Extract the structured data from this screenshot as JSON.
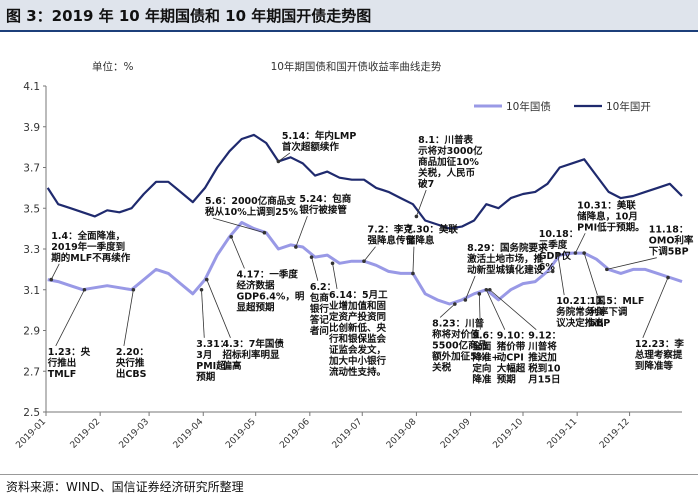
{
  "header": {
    "title": "图 3：2019 年 10 年期国债和 10 年期国开债走势图"
  },
  "footer": {
    "source": "资料来源：WIND、国信证券经济研究所整理"
  },
  "colors": {
    "cgb": "#9999e6",
    "cdb": "#1f2a6e"
  },
  "chart_data": {
    "type": "line",
    "title": "10年期国债和国开债收益率曲线走势",
    "unit_label": "单位：%",
    "ylim": [
      2.5,
      4.1
    ],
    "yticks": [
      "2.5",
      "2.7",
      "2.9",
      "3.1",
      "3.3",
      "3.5",
      "3.7",
      "3.9",
      "4.1"
    ],
    "x_range": [
      "2019-01-01",
      "2019-12-31"
    ],
    "xticks": [
      "2019-01",
      "2019-02",
      "2019-03",
      "2019-04",
      "2019-05",
      "2019-06",
      "2019-07",
      "2019-08",
      "2019-09",
      "2019-10",
      "2019-11",
      "2019-12"
    ],
    "grid": false,
    "legend_position": "top-right",
    "series": [
      {
        "name": "10年国债",
        "color": "#9999e6",
        "points": [
          [
            "2019-01-02",
            3.15
          ],
          [
            "2019-01-08",
            3.14
          ],
          [
            "2019-01-15",
            3.12
          ],
          [
            "2019-01-22",
            3.1
          ],
          [
            "2019-01-29",
            3.11
          ],
          [
            "2019-02-05",
            3.12
          ],
          [
            "2019-02-12",
            3.11
          ],
          [
            "2019-02-19",
            3.1
          ],
          [
            "2019-02-26",
            3.15
          ],
          [
            "2019-03-05",
            3.2
          ],
          [
            "2019-03-12",
            3.18
          ],
          [
            "2019-03-19",
            3.13
          ],
          [
            "2019-03-26",
            3.08
          ],
          [
            "2019-04-02",
            3.15
          ],
          [
            "2019-04-09",
            3.27
          ],
          [
            "2019-04-16",
            3.36
          ],
          [
            "2019-04-23",
            3.43
          ],
          [
            "2019-04-30",
            3.4
          ],
          [
            "2019-05-07",
            3.38
          ],
          [
            "2019-05-14",
            3.3
          ],
          [
            "2019-05-21",
            3.32
          ],
          [
            "2019-05-28",
            3.31
          ],
          [
            "2019-06-04",
            3.26
          ],
          [
            "2019-06-11",
            3.27
          ],
          [
            "2019-06-18",
            3.23
          ],
          [
            "2019-06-25",
            3.24
          ],
          [
            "2019-07-02",
            3.24
          ],
          [
            "2019-07-09",
            3.22
          ],
          [
            "2019-07-16",
            3.19
          ],
          [
            "2019-07-23",
            3.18
          ],
          [
            "2019-07-30",
            3.18
          ],
          [
            "2019-08-06",
            3.08
          ],
          [
            "2019-08-13",
            3.05
          ],
          [
            "2019-08-20",
            3.03
          ],
          [
            "2019-08-27",
            3.05
          ],
          [
            "2019-09-03",
            3.08
          ],
          [
            "2019-09-10",
            3.1
          ],
          [
            "2019-09-17",
            3.05
          ],
          [
            "2019-09-24",
            3.1
          ],
          [
            "2019-10-01",
            3.13
          ],
          [
            "2019-10-08",
            3.14
          ],
          [
            "2019-10-15",
            3.19
          ],
          [
            "2019-10-22",
            3.27
          ],
          [
            "2019-10-29",
            3.28
          ],
          [
            "2019-11-05",
            3.28
          ],
          [
            "2019-11-12",
            3.25
          ],
          [
            "2019-11-19",
            3.2
          ],
          [
            "2019-11-26",
            3.18
          ],
          [
            "2019-12-03",
            3.2
          ],
          [
            "2019-12-10",
            3.2
          ],
          [
            "2019-12-17",
            3.18
          ],
          [
            "2019-12-24",
            3.16
          ],
          [
            "2019-12-31",
            3.14
          ]
        ]
      },
      {
        "name": "10年国开",
        "color": "#1f2a6e",
        "points": [
          [
            "2019-01-02",
            3.6
          ],
          [
            "2019-01-08",
            3.52
          ],
          [
            "2019-01-15",
            3.5
          ],
          [
            "2019-01-22",
            3.48
          ],
          [
            "2019-01-29",
            3.46
          ],
          [
            "2019-02-05",
            3.49
          ],
          [
            "2019-02-12",
            3.48
          ],
          [
            "2019-02-19",
            3.5
          ],
          [
            "2019-02-26",
            3.57
          ],
          [
            "2019-03-05",
            3.63
          ],
          [
            "2019-03-12",
            3.63
          ],
          [
            "2019-03-19",
            3.58
          ],
          [
            "2019-03-26",
            3.53
          ],
          [
            "2019-04-02",
            3.6
          ],
          [
            "2019-04-09",
            3.7
          ],
          [
            "2019-04-16",
            3.78
          ],
          [
            "2019-04-23",
            3.84
          ],
          [
            "2019-04-30",
            3.86
          ],
          [
            "2019-05-07",
            3.82
          ],
          [
            "2019-05-14",
            3.73
          ],
          [
            "2019-05-21",
            3.75
          ],
          [
            "2019-05-28",
            3.72
          ],
          [
            "2019-06-04",
            3.66
          ],
          [
            "2019-06-11",
            3.68
          ],
          [
            "2019-06-18",
            3.65
          ],
          [
            "2019-06-25",
            3.64
          ],
          [
            "2019-07-02",
            3.64
          ],
          [
            "2019-07-09",
            3.6
          ],
          [
            "2019-07-16",
            3.58
          ],
          [
            "2019-07-23",
            3.55
          ],
          [
            "2019-07-30",
            3.52
          ],
          [
            "2019-08-06",
            3.44
          ],
          [
            "2019-08-13",
            3.42
          ],
          [
            "2019-08-20",
            3.4
          ],
          [
            "2019-08-27",
            3.41
          ],
          [
            "2019-09-03",
            3.44
          ],
          [
            "2019-09-10",
            3.52
          ],
          [
            "2019-09-17",
            3.5
          ],
          [
            "2019-09-24",
            3.55
          ],
          [
            "2019-10-01",
            3.57
          ],
          [
            "2019-10-08",
            3.58
          ],
          [
            "2019-10-15",
            3.62
          ],
          [
            "2019-10-22",
            3.7
          ],
          [
            "2019-10-29",
            3.72
          ],
          [
            "2019-11-05",
            3.74
          ],
          [
            "2019-11-12",
            3.66
          ],
          [
            "2019-11-19",
            3.58
          ],
          [
            "2019-11-26",
            3.55
          ],
          [
            "2019-12-03",
            3.56
          ],
          [
            "2019-12-10",
            3.58
          ],
          [
            "2019-12-17",
            3.6
          ],
          [
            "2019-12-24",
            3.62
          ],
          [
            "2019-12-31",
            3.56
          ]
        ]
      }
    ],
    "annotations": [
      {
        "text": [
          "1.4：全面降准，",
          "2019年一季度到",
          "期的MLF不再续作"
        ],
        "date": "2019-01-04",
        "value": 3.15,
        "label_date": "2019-01-04",
        "label_value": 3.35,
        "anchor": "start"
      },
      {
        "text": [
          "1.23：央",
          "行推出",
          "TMLF"
        ],
        "date": "2019-01-23",
        "value": 3.1,
        "label_date": "2019-01-02",
        "label_value": 2.78,
        "anchor": "start"
      },
      {
        "text": [
          "2.20：",
          "央行推",
          "出CBS"
        ],
        "date": "2019-02-20",
        "value": 3.1,
        "label_date": "2019-02-10",
        "label_value": 2.78,
        "anchor": "start"
      },
      {
        "text": [
          "3.31：",
          "3月",
          "PMI超",
          "预期"
        ],
        "date": "2019-03-31",
        "value": 3.1,
        "label_date": "2019-03-28",
        "label_value": 2.82,
        "anchor": "start"
      },
      {
        "text": [
          "4.3：7年国债",
          "招标利率明显",
          "偏高"
        ],
        "date": "2019-04-03",
        "value": 3.15,
        "label_date": "2019-04-12",
        "label_value": 2.82,
        "anchor": "start"
      },
      {
        "text": [
          "4.17：一季度",
          "经济数据",
          "GDP6.4%，明",
          "显超预期"
        ],
        "date": "2019-04-17",
        "value": 3.36,
        "label_date": "2019-04-20",
        "label_value": 3.16,
        "anchor": "start"
      },
      {
        "text": [
          "5.6：2000亿商品支",
          "税从10%上调到25%"
        ],
        "date": "2019-05-06",
        "value": 3.38,
        "label_date": "2019-04-02",
        "label_value": 3.52,
        "anchor": "start"
      },
      {
        "text": [
          "5.14：年内LMP",
          "首次超额续作"
        ],
        "date": "2019-05-14",
        "value": 3.73,
        "label_date": "2019-05-16",
        "label_value": 3.84,
        "anchor": "start"
      },
      {
        "text": [
          "5.24：包商",
          "银行被接管"
        ],
        "date": "2019-05-24",
        "value": 3.31,
        "label_date": "2019-05-26",
        "label_value": 3.53,
        "anchor": "start"
      },
      {
        "text": [
          "6.2：",
          "包商",
          "银行",
          "答记",
          "者问"
        ],
        "date": "2019-06-02",
        "value": 3.26,
        "label_date": "2019-06-01",
        "label_value": 3.1,
        "anchor": "start"
      },
      {
        "text": [
          "6.14：5月工",
          "业增加值和固",
          "定资产投资同",
          "比创新低、央",
          "行和银保监会",
          "证监会发文，",
          "加大中小银行",
          "流动性支持。"
        ],
        "date": "2019-06-14",
        "value": 3.23,
        "label_date": "2019-06-12",
        "label_value": 3.06,
        "anchor": "start"
      },
      {
        "text": [
          "7.2：李克",
          "强降息传言"
        ],
        "date": "2019-07-02",
        "value": 3.24,
        "label_date": "2019-07-04",
        "label_value": 3.38,
        "anchor": "start"
      },
      {
        "text": [
          "7.30：美联",
          "储降息"
        ],
        "date": "2019-07-30",
        "value": 3.18,
        "label_date": "2019-07-26",
        "label_value": 3.38,
        "anchor": "start"
      },
      {
        "text": [
          "8.1：川普表",
          "示将对3000亿",
          "商品加征10%",
          "关税，人民币",
          "破7"
        ],
        "date": "2019-08-01",
        "value": 3.46,
        "label_date": "2019-08-02",
        "label_value": 3.82,
        "anchor": "start"
      },
      {
        "text": [
          "8.23：川普",
          "称将对价值",
          "5500亿商品",
          "额外加征5%",
          "关税"
        ],
        "date": "2019-08-23",
        "value": 3.03,
        "label_date": "2019-08-10",
        "label_value": 2.92,
        "anchor": "start"
      },
      {
        "text": [
          "8.29：国务院要求",
          "激活土地市场，推",
          "动新型城镇化建设"
        ],
        "date": "2019-08-29",
        "value": 3.05,
        "label_date": "2019-08-30",
        "label_value": 3.29,
        "anchor": "start"
      },
      {
        "text": [
          "9.6：",
          "全面",
          "降准+",
          "定向",
          "降准"
        ],
        "date": "2019-09-06",
        "value": 3.08,
        "label_date": "2019-09-02",
        "label_value": 2.86,
        "anchor": "start"
      },
      {
        "text": [
          "9.10：",
          "猪价带",
          "动CPI",
          "大幅超",
          "预期"
        ],
        "date": "2019-09-10",
        "value": 3.1,
        "label_date": "2019-09-16",
        "label_value": 2.86,
        "anchor": "start"
      },
      {
        "text": [
          "9.12：",
          "川普将",
          "推迟加",
          "税到10",
          "月15日"
        ],
        "date": "2019-09-12",
        "value": 3.1,
        "label_date": "2019-10-04",
        "label_value": 2.86,
        "anchor": "start"
      },
      {
        "text": [
          "10.18：",
          "三季度",
          "GDP仅",
          "6%"
        ],
        "date": "2019-10-18",
        "value": 3.19,
        "label_date": "2019-10-10",
        "label_value": 3.36,
        "anchor": "start"
      },
      {
        "text": [
          "10.21：国",
          "务院常务会",
          "议决定推出"
        ],
        "date": "2019-10-21",
        "value": 3.27,
        "label_date": "2019-10-20",
        "label_value": 3.03,
        "anchor": "start"
      },
      {
        "text": [
          "10.31：美联",
          "储降息，10月",
          "PMI低于预期。"
        ],
        "date": "2019-10-31",
        "value": 3.28,
        "label_date": "2019-11-01",
        "label_value": 3.5,
        "anchor": "start"
      },
      {
        "text": [
          "11.5：MLF",
          "利率下调",
          "5BP"
        ],
        "date": "2019-11-05",
        "value": 3.28,
        "label_date": "2019-11-08",
        "label_value": 3.03,
        "anchor": "start"
      },
      {
        "text": [
          "11.18：",
          "OMO利率",
          "下调5BP"
        ],
        "date": "2019-11-18",
        "value": 3.2,
        "label_date": "2019-12-12",
        "label_value": 3.38,
        "anchor": "start"
      },
      {
        "text": [
          "12.23：李",
          "总理考察提",
          "到降准等"
        ],
        "date": "2019-12-23",
        "value": 3.16,
        "label_date": "2019-12-04",
        "label_value": 2.82,
        "anchor": "start"
      }
    ]
  }
}
